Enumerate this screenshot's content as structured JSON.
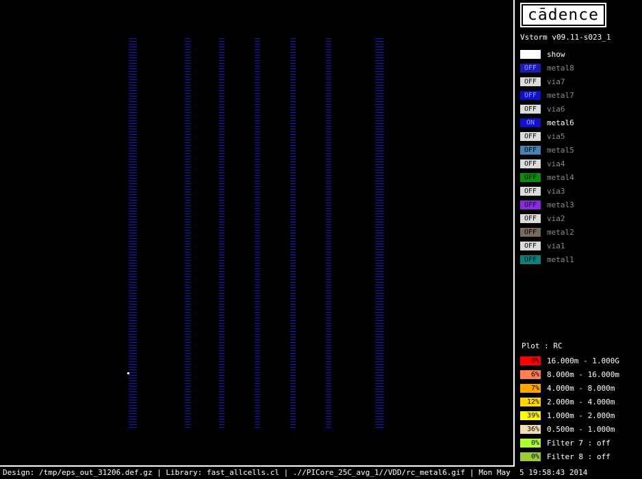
{
  "app": {
    "logo_text": "cādence",
    "version": "Vstorm v09.11-s023_1"
  },
  "layers": [
    {
      "state": "",
      "name": "show",
      "color": "#ffffff",
      "text_dim": false,
      "label_on": true
    },
    {
      "state": "OFF",
      "name": "metal8",
      "color": "#1c1cb4",
      "text_dim": true,
      "label_on": false
    },
    {
      "state": "OFF",
      "name": "via7",
      "color": "#dcdcdc",
      "text_dim": false,
      "label_on": false
    },
    {
      "state": "OFF",
      "name": "metal7",
      "color": "#1010c8",
      "text_dim": true,
      "label_on": false
    },
    {
      "state": "OFF",
      "name": "via6",
      "color": "#dcdcdc",
      "text_dim": false,
      "label_on": false
    },
    {
      "state": "ON",
      "name": "metal6",
      "color": "#1010c8",
      "text_dim": true,
      "label_on": true
    },
    {
      "state": "OFF",
      "name": "via5",
      "color": "#dcdcdc",
      "text_dim": false,
      "label_on": false
    },
    {
      "state": "OFF",
      "name": "metal5",
      "color": "#4682b4",
      "text_dim": false,
      "label_on": false
    },
    {
      "state": "OFF",
      "name": "via4",
      "color": "#dcdcdc",
      "text_dim": false,
      "label_on": false
    },
    {
      "state": "OFF",
      "name": "metal4",
      "color": "#0e8a0e",
      "text_dim": false,
      "label_on": false
    },
    {
      "state": "OFF",
      "name": "via3",
      "color": "#dcdcdc",
      "text_dim": false,
      "label_on": false
    },
    {
      "state": "OFF",
      "name": "metal3",
      "color": "#8a2be2",
      "text_dim": false,
      "label_on": false
    },
    {
      "state": "OFF",
      "name": "via2",
      "color": "#dcdcdc",
      "text_dim": false,
      "label_on": false
    },
    {
      "state": "OFF",
      "name": "metal2",
      "color": "#7a6a5a",
      "text_dim": false,
      "label_on": false
    },
    {
      "state": "OFF",
      "name": "via1",
      "color": "#dcdcdc",
      "text_dim": false,
      "label_on": false
    },
    {
      "state": "OFF",
      "name": "metal1",
      "color": "#0a8080",
      "text_dim": false,
      "label_on": false
    }
  ],
  "plot": {
    "title": "Plot : RC",
    "bins": [
      {
        "pct": "0%",
        "range": "16.000m - 1.000G",
        "color": "#ff0000"
      },
      {
        "pct": "6%",
        "range": "8.000m - 16.000m",
        "color": "#ff7f50"
      },
      {
        "pct": "7%",
        "range": "4.000m - 8.000m",
        "color": "#ffa500"
      },
      {
        "pct": "12%",
        "range": "2.000m - 4.000m",
        "color": "#ffd700"
      },
      {
        "pct": "39%",
        "range": "1.000m - 2.000m",
        "color": "#ffff00"
      },
      {
        "pct": "36%",
        "range": "0.500m - 1.000m",
        "color": "#f5deb3"
      },
      {
        "pct": "0%",
        "range": "Filter 7 : off",
        "color": "#adff2f"
      },
      {
        "pct": "0%",
        "range": "Filter 8 : off",
        "color": "#9acd32"
      }
    ]
  },
  "status_bar": "Design: /tmp/eps_out_31206.def.gz | Library: fast_allcells.cl | .//PICore_25C_avg_1//VDD/rc_metal6.gif | Mon May  5 19:58:43 2014",
  "canvas": {
    "stripe_color": "#1414c8",
    "marker_color": "#ffffff"
  }
}
